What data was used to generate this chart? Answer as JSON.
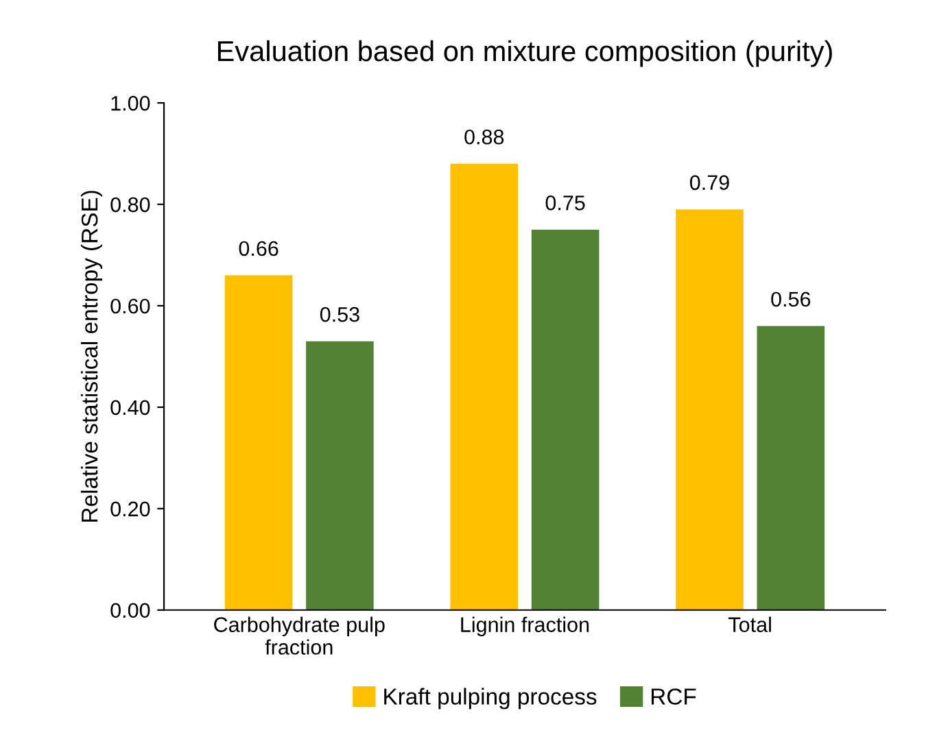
{
  "chart_data": {
    "type": "bar",
    "title": "Evaluation based on mixture composition (purity)",
    "ylabel": "Relative statistical entropy (RSE)",
    "categories": [
      "Carbohydrate pulp\nfraction",
      "Lignin fraction",
      "Total"
    ],
    "series": [
      {
        "name": "Kraft pulping process",
        "color": "#ffc000",
        "values": [
          0.66,
          0.88,
          0.79
        ]
      },
      {
        "name": "RCF",
        "color": "#548235",
        "values": [
          0.53,
          0.75,
          0.56
        ]
      }
    ],
    "ylim": [
      0,
      1
    ],
    "yticks": [
      {
        "value": 0,
        "label": "0.00"
      },
      {
        "value": 0.2,
        "label": "0.20"
      },
      {
        "value": 0.4,
        "label": "0.40"
      },
      {
        "value": 0.6,
        "label": "0.60"
      },
      {
        "value": 0.8,
        "label": "0.80"
      },
      {
        "value": 1,
        "label": "1.00"
      }
    ],
    "data_labels": true,
    "grid": false,
    "legend": "bottom"
  }
}
